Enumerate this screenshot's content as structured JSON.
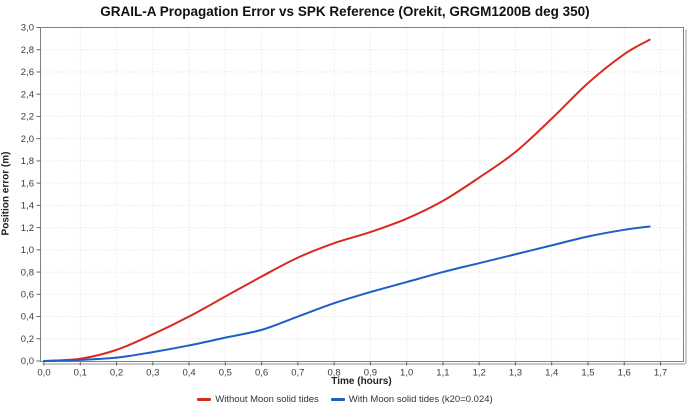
{
  "chart_data": {
    "type": "line",
    "title": "GRAIL-A Propagation Error vs SPK Reference (Orekit, GRGM1200B deg 350)",
    "xlabel": "Time (hours)",
    "ylabel": "Position error (m)",
    "xlim": [
      0.0,
      1.7
    ],
    "ylim": [
      0.0,
      3.0
    ],
    "x_tick_step": 0.1,
    "y_tick_step": 0.2,
    "decimal_separator": ",",
    "grid": "dotted",
    "legend_position": "bottom-center",
    "x": [
      0.0,
      0.1,
      0.2,
      0.3,
      0.4,
      0.5,
      0.6,
      0.7,
      0.8,
      0.9,
      1.0,
      1.1,
      1.2,
      1.3,
      1.4,
      1.5,
      1.6,
      1.67
    ],
    "series": [
      {
        "name": "Without Moon solid tides",
        "color": "#d92a21",
        "values": [
          0.0,
          0.02,
          0.1,
          0.24,
          0.4,
          0.58,
          0.76,
          0.93,
          1.06,
          1.16,
          1.28,
          1.44,
          1.65,
          1.88,
          2.18,
          2.5,
          2.76,
          2.89
        ]
      },
      {
        "name": "With Moon solid tides (k20=0.024)",
        "color": "#1e5fc6",
        "values": [
          0.0,
          0.01,
          0.03,
          0.08,
          0.14,
          0.21,
          0.28,
          0.4,
          0.52,
          0.62,
          0.71,
          0.8,
          0.88,
          0.96,
          1.04,
          1.12,
          1.18,
          1.21
        ]
      }
    ]
  },
  "colors": {
    "background": "#ffffff",
    "plot_border": "#7f7f7f",
    "plot_shadow": "#c9c9c9",
    "gridline": "#e0e0e0",
    "tick_mark": "#666666",
    "tick_label": "#3b3b3b",
    "title_text": "#111111"
  }
}
